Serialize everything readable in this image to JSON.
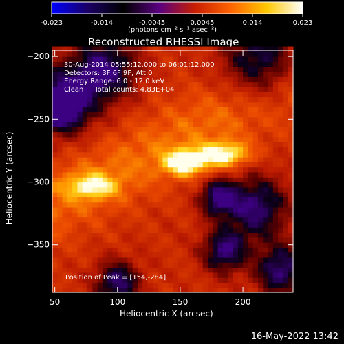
{
  "colorbar": {
    "min_label": "-0.023",
    "tick_labels": [
      "-0.023",
      "-0.014",
      "-0.0045",
      "0.0045",
      "0.014",
      "0.023"
    ],
    "units_label": "(photons cm⁻² s⁻¹ asec⁻²)",
    "colors": [
      "#0000ff",
      "#1a0066",
      "#000000",
      "#5a0080",
      "#c81e00",
      "#ff6400",
      "#ffc800",
      "#ffffff"
    ]
  },
  "chart_data": {
    "type": "heatmap",
    "title": "Reconstructed RHESSI Image",
    "xlabel": "Heliocentric X (arcsec)",
    "ylabel": "Heliocentric Y (arcsec)",
    "xlim": [
      48,
      240
    ],
    "ylim": [
      -388,
      -195
    ],
    "x_ticks": [
      50,
      100,
      150,
      200
    ],
    "y_ticks": [
      -200,
      -250,
      -300,
      -350
    ],
    "x_tick_labels": [
      "50",
      "100",
      "150",
      "200"
    ],
    "y_tick_labels": [
      "−200",
      "−250",
      "−300",
      "−350"
    ],
    "annotations": [
      "30-Aug-2014 05:55:12.000 to 06:01:12.000",
      "Detectors: 3F 6F 9F, Att 0",
      "Energy Range: 6.0 - 12.0 keV",
      "Clean     Total counts: 4.83E+04"
    ],
    "peak_label": "Position of Peak = [154,-284]",
    "peak": [
      154,
      -284
    ],
    "bright_sources": [
      {
        "x": 154,
        "y": -284,
        "level": 1.0
      },
      {
        "x": 185,
        "y": -278,
        "level": 0.9
      },
      {
        "x": 80,
        "y": -303,
        "level": 0.7
      }
    ]
  },
  "footer": {
    "timestamp": "16-May-2022 13:42"
  }
}
